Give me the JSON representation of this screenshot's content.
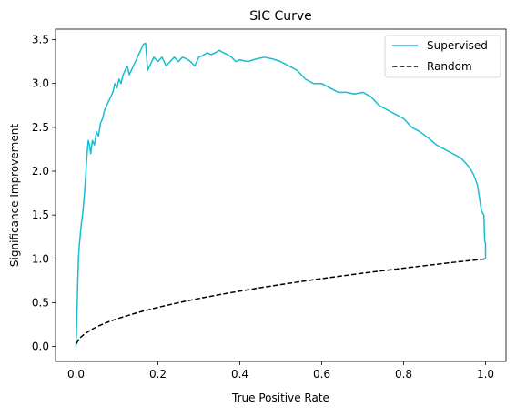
{
  "chart_data": {
    "type": "line",
    "title": "SIC Curve",
    "xlabel": "True Positive Rate",
    "ylabel": "Significance Improvement",
    "xlim": [
      -0.05,
      1.05
    ],
    "ylim": [
      -0.17,
      3.62
    ],
    "xticks": [
      0.0,
      0.2,
      0.4,
      0.6,
      0.8,
      1.0
    ],
    "xtick_labels": [
      "0.0",
      "0.2",
      "0.4",
      "0.6",
      "0.8",
      "1.0"
    ],
    "yticks": [
      0.0,
      0.5,
      1.0,
      1.5,
      2.0,
      2.5,
      3.0,
      3.5
    ],
    "ytick_labels": [
      "0.0",
      "0.5",
      "1.0",
      "1.5",
      "2.0",
      "2.5",
      "3.0",
      "3.5"
    ],
    "grid": false,
    "legend_position": "top-right",
    "series": [
      {
        "name": "Supervised",
        "color": "#17becf",
        "style": "solid",
        "x": [
          0.0,
          0.002,
          0.004,
          0.006,
          0.008,
          0.01,
          0.013,
          0.016,
          0.02,
          0.023,
          0.027,
          0.03,
          0.033,
          0.036,
          0.04,
          0.045,
          0.05,
          0.055,
          0.06,
          0.065,
          0.07,
          0.075,
          0.08,
          0.085,
          0.09,
          0.095,
          0.1,
          0.105,
          0.11,
          0.115,
          0.12,
          0.125,
          0.13,
          0.135,
          0.14,
          0.145,
          0.15,
          0.155,
          0.16,
          0.165,
          0.17,
          0.175,
          0.18,
          0.185,
          0.19,
          0.2,
          0.21,
          0.22,
          0.23,
          0.24,
          0.25,
          0.26,
          0.27,
          0.28,
          0.29,
          0.3,
          0.31,
          0.32,
          0.33,
          0.34,
          0.35,
          0.36,
          0.37,
          0.38,
          0.39,
          0.4,
          0.42,
          0.44,
          0.46,
          0.48,
          0.5,
          0.52,
          0.54,
          0.56,
          0.58,
          0.6,
          0.62,
          0.64,
          0.66,
          0.68,
          0.7,
          0.72,
          0.74,
          0.76,
          0.78,
          0.8,
          0.82,
          0.84,
          0.86,
          0.88,
          0.9,
          0.92,
          0.94,
          0.96,
          0.97,
          0.98,
          0.985,
          0.99,
          0.993,
          0.996,
          0.998,
          1.0,
          1.0
        ],
        "y": [
          0.0,
          0.3,
          0.7,
          1.0,
          1.15,
          1.25,
          1.4,
          1.5,
          1.7,
          1.9,
          2.2,
          2.35,
          2.3,
          2.2,
          2.35,
          2.3,
          2.45,
          2.4,
          2.55,
          2.6,
          2.7,
          2.75,
          2.8,
          2.85,
          2.9,
          3.0,
          2.95,
          3.05,
          3.0,
          3.1,
          3.15,
          3.2,
          3.1,
          3.15,
          3.2,
          3.25,
          3.3,
          3.35,
          3.4,
          3.45,
          3.46,
          3.15,
          3.2,
          3.25,
          3.3,
          3.25,
          3.3,
          3.2,
          3.25,
          3.3,
          3.25,
          3.3,
          3.28,
          3.25,
          3.2,
          3.3,
          3.32,
          3.35,
          3.33,
          3.35,
          3.38,
          3.35,
          3.33,
          3.3,
          3.25,
          3.27,
          3.25,
          3.28,
          3.3,
          3.28,
          3.25,
          3.2,
          3.15,
          3.05,
          3.0,
          3.0,
          2.95,
          2.9,
          2.9,
          2.88,
          2.9,
          2.85,
          2.75,
          2.7,
          2.65,
          2.6,
          2.5,
          2.45,
          2.38,
          2.3,
          2.25,
          2.2,
          2.15,
          2.05,
          1.97,
          1.85,
          1.7,
          1.55,
          1.52,
          1.5,
          1.2,
          1.18,
          1.0
        ]
      },
      {
        "name": "Random",
        "color": "#000000",
        "style": "dashed",
        "function": "sqrt",
        "x": [
          0.001,
          0.005,
          0.01,
          0.02,
          0.04,
          0.06,
          0.08,
          0.1,
          0.15,
          0.2,
          0.25,
          0.3,
          0.35,
          0.4,
          0.45,
          0.5,
          0.55,
          0.6,
          0.65,
          0.7,
          0.75,
          0.8,
          0.85,
          0.9,
          0.95,
          1.0
        ],
        "y": [
          0.032,
          0.071,
          0.1,
          0.141,
          0.2,
          0.245,
          0.283,
          0.316,
          0.387,
          0.447,
          0.5,
          0.548,
          0.592,
          0.632,
          0.671,
          0.707,
          0.742,
          0.775,
          0.806,
          0.837,
          0.866,
          0.894,
          0.922,
          0.949,
          0.975,
          1.0
        ]
      }
    ]
  }
}
